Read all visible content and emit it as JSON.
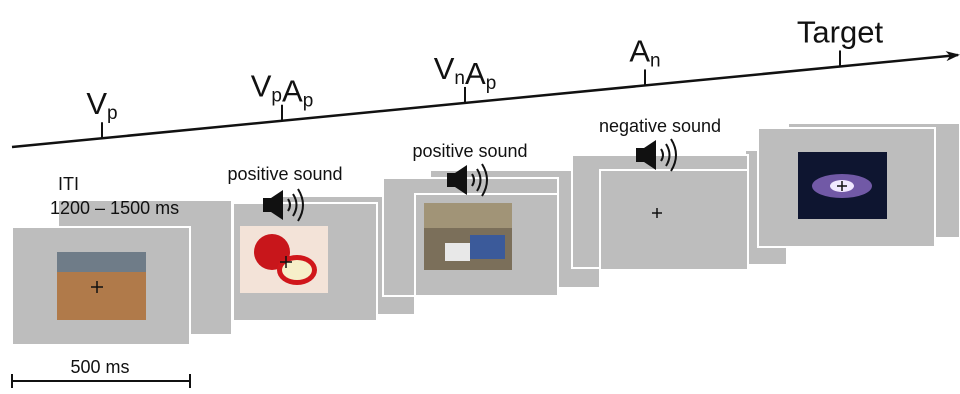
{
  "timeline": {
    "labels": [
      {
        "parts": [
          {
            "main": "V",
            "sub": "p"
          }
        ]
      },
      {
        "parts": [
          {
            "main": "V",
            "sub": "p"
          },
          {
            "main": "A",
            "sub": "p"
          }
        ]
      },
      {
        "parts": [
          {
            "main": "V",
            "sub": "n"
          },
          {
            "main": "A",
            "sub": "p"
          }
        ]
      },
      {
        "parts": [
          {
            "main": "A",
            "sub": "n"
          }
        ]
      },
      {
        "parts": [
          {
            "main": "Target"
          }
        ]
      }
    ]
  },
  "iti": {
    "label": "ITI",
    "duration": "1200 – 1500 ms"
  },
  "sounds": [
    "positive sound",
    "positive sound",
    "negative sound"
  ],
  "scale_bar": {
    "label": "500 ms"
  }
}
